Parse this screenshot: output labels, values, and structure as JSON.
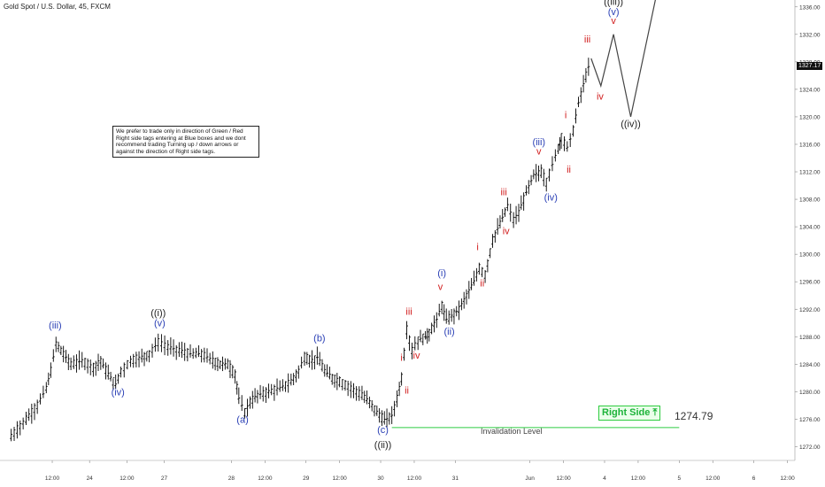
{
  "header": {
    "title": "Gold Spot / U.S. Dollar, 45, FXCM"
  },
  "note": {
    "text": "We prefer to trade only in direction of Green / Red Right side tags entering at Blue boxes and we dont recommend trading Turning up / down arrows or against the direction of Right side tags."
  },
  "right_side_tag": {
    "label": "Right Side",
    "arrow": "⤒"
  },
  "invalidation": {
    "label": "Invalidation Level",
    "value": "1274.79"
  },
  "last_price": "1327.17",
  "colors": {
    "bull": "#000000",
    "blue_label": "#2a3fb5",
    "red_label": "#d11d1d",
    "black_label": "#222222",
    "green": "#2ecc40",
    "grid": "#f0f0f0",
    "projection": "#444444"
  },
  "chart_data": {
    "type": "line",
    "title": "Gold Spot / U.S. Dollar, 45, FXCM",
    "ylim": [
      1270,
      1337
    ],
    "y_ticks": [
      "1272.00",
      "1276.00",
      "1280.00",
      "1284.00",
      "1288.00",
      "1292.00",
      "1296.00",
      "1300.00",
      "1304.00",
      "1308.00",
      "1312.00",
      "1316.00",
      "1320.00",
      "1324.00",
      "1328.00",
      "1332.00",
      "1336.00"
    ],
    "x_ticks": [
      {
        "label": "12:00",
        "t": 0.8
      },
      {
        "label": "24",
        "t": 1.3
      },
      {
        "label": "12:00",
        "t": 1.8
      },
      {
        "label": "27",
        "t": 2.3
      },
      {
        "label": "28",
        "t": 3.2
      },
      {
        "label": "12:00",
        "t": 3.65
      },
      {
        "label": "29",
        "t": 4.2
      },
      {
        "label": "12:00",
        "t": 4.65
      },
      {
        "label": "30",
        "t": 5.2
      },
      {
        "label": "12:00",
        "t": 5.65
      },
      {
        "label": "31",
        "t": 6.2
      },
      {
        "label": "Jun",
        "t": 7.2
      },
      {
        "label": "12:00",
        "t": 7.65
      },
      {
        "label": "4",
        "t": 8.2
      },
      {
        "label": "12:00",
        "t": 8.65
      },
      {
        "label": "5",
        "t": 9.2
      },
      {
        "label": "12:00",
        "t": 9.65
      },
      {
        "label": "6",
        "t": 10.2
      },
      {
        "label": "12:00",
        "t": 10.65
      }
    ],
    "price_path": [
      [
        0.25,
        1273.5
      ],
      [
        0.45,
        1276
      ],
      [
        0.6,
        1278
      ],
      [
        0.72,
        1280.5
      ],
      [
        0.78,
        1283
      ],
      [
        0.85,
        1287
      ],
      [
        0.95,
        1285.5
      ],
      [
        1.05,
        1284
      ],
      [
        1.2,
        1284.5
      ],
      [
        1.35,
        1283.5
      ],
      [
        1.45,
        1284.5
      ],
      [
        1.55,
        1282.5
      ],
      [
        1.65,
        1281
      ],
      [
        1.72,
        1283
      ],
      [
        1.85,
        1284.5
      ],
      [
        2.0,
        1285
      ],
      [
        2.1,
        1285.5
      ],
      [
        2.22,
        1287.2
      ],
      [
        2.35,
        1286.5
      ],
      [
        2.5,
        1286
      ],
      [
        2.65,
        1285.5
      ],
      [
        2.8,
        1285.5
      ],
      [
        2.95,
        1284.5
      ],
      [
        3.05,
        1284
      ],
      [
        3.15,
        1284
      ],
      [
        3.25,
        1282.5
      ],
      [
        3.3,
        1279
      ],
      [
        3.38,
        1277
      ],
      [
        3.45,
        1278.5
      ],
      [
        3.55,
        1279.5
      ],
      [
        3.7,
        1280
      ],
      [
        3.85,
        1280.5
      ],
      [
        4.0,
        1281.5
      ],
      [
        4.1,
        1283
      ],
      [
        4.18,
        1285
      ],
      [
        4.28,
        1284.5
      ],
      [
        4.35,
        1285
      ],
      [
        4.45,
        1283
      ],
      [
        4.55,
        1282
      ],
      [
        4.65,
        1281.5
      ],
      [
        4.8,
        1280.5
      ],
      [
        4.95,
        1279.5
      ],
      [
        5.05,
        1278.5
      ],
      [
        5.15,
        1277
      ],
      [
        5.25,
        1275.8
      ],
      [
        5.35,
        1276.5
      ],
      [
        5.42,
        1279
      ],
      [
        5.48,
        1282
      ],
      [
        5.55,
        1289
      ],
      [
        5.62,
        1286
      ],
      [
        5.7,
        1287.5
      ],
      [
        5.8,
        1288
      ],
      [
        5.85,
        1288.5
      ],
      [
        5.95,
        1290.5
      ],
      [
        6.02,
        1292.5
      ],
      [
        6.08,
        1290.5
      ],
      [
        6.15,
        1291
      ],
      [
        6.25,
        1292
      ],
      [
        6.35,
        1294
      ],
      [
        6.45,
        1296
      ],
      [
        6.52,
        1298
      ],
      [
        6.6,
        1297
      ],
      [
        6.7,
        1302
      ],
      [
        6.8,
        1304.5
      ],
      [
        6.9,
        1307
      ],
      [
        6.98,
        1305
      ],
      [
        7.05,
        1306
      ],
      [
        7.15,
        1309
      ],
      [
        7.25,
        1311.5
      ],
      [
        7.35,
        1312
      ],
      [
        7.42,
        1310.5
      ],
      [
        7.5,
        1313
      ],
      [
        7.58,
        1315.5
      ],
      [
        7.62,
        1317
      ],
      [
        7.7,
        1315.5
      ],
      [
        7.78,
        1318
      ],
      [
        7.85,
        1322
      ],
      [
        7.95,
        1326
      ],
      [
        8.02,
        1328.5
      ]
    ],
    "projection_path": [
      [
        8.02,
        1328.5
      ],
      [
        8.15,
        1324.5
      ],
      [
        8.32,
        1332
      ],
      [
        8.55,
        1320
      ],
      [
        8.9,
        1338
      ]
    ],
    "invalidation_level": 1274.79,
    "invalidation_range": [
      5.35,
      9.2
    ],
    "annotations": [
      {
        "text": "(iii)",
        "t": 0.84,
        "y": 1289.2,
        "color": "blue"
      },
      {
        "text": "(iv)",
        "t": 1.68,
        "y": 1279.5,
        "color": "blue"
      },
      {
        "text": "((i))",
        "t": 2.22,
        "y": 1291,
        "color": "black"
      },
      {
        "text": "(v)",
        "t": 2.24,
        "y": 1289.5,
        "color": "blue"
      },
      {
        "text": "(a)",
        "t": 3.35,
        "y": 1275.5,
        "color": "blue"
      },
      {
        "text": "(b)",
        "t": 4.38,
        "y": 1287.3,
        "color": "blue"
      },
      {
        "text": "(c)",
        "t": 5.23,
        "y": 1274,
        "color": "blue"
      },
      {
        "text": "((ii))",
        "t": 5.23,
        "y": 1271.8,
        "color": "black"
      },
      {
        "text": "i",
        "t": 5.48,
        "y": 1284.5,
        "color": "red"
      },
      {
        "text": "ii",
        "t": 5.55,
        "y": 1279.7,
        "color": "red"
      },
      {
        "text": "iii",
        "t": 5.58,
        "y": 1291.2,
        "color": "red"
      },
      {
        "text": "iv",
        "t": 5.68,
        "y": 1284.8,
        "color": "red"
      },
      {
        "text": "v",
        "t": 6.0,
        "y": 1294.8,
        "color": "red"
      },
      {
        "text": "(i)",
        "t": 6.02,
        "y": 1296.8,
        "color": "blue"
      },
      {
        "text": "(ii)",
        "t": 6.12,
        "y": 1288.3,
        "color": "blue"
      },
      {
        "text": "i",
        "t": 6.5,
        "y": 1300.6,
        "color": "red"
      },
      {
        "text": "ii",
        "t": 6.56,
        "y": 1295.3,
        "color": "red"
      },
      {
        "text": "iii",
        "t": 6.85,
        "y": 1308.6,
        "color": "red"
      },
      {
        "text": "iv",
        "t": 6.88,
        "y": 1302.9,
        "color": "red"
      },
      {
        "text": "v",
        "t": 7.32,
        "y": 1314.5,
        "color": "red"
      },
      {
        "text": "(iii)",
        "t": 7.32,
        "y": 1315.9,
        "color": "blue"
      },
      {
        "text": "(iv)",
        "t": 7.48,
        "y": 1307.8,
        "color": "blue"
      },
      {
        "text": "i",
        "t": 7.68,
        "y": 1319.8,
        "color": "red"
      },
      {
        "text": "ii",
        "t": 7.72,
        "y": 1311.9,
        "color": "red"
      },
      {
        "text": "iii",
        "t": 7.97,
        "y": 1330.8,
        "color": "red"
      },
      {
        "text": "iv",
        "t": 8.14,
        "y": 1322.5,
        "color": "red"
      },
      {
        "text": "v",
        "t": 8.32,
        "y": 1333.5,
        "color": "red"
      },
      {
        "text": "(v)",
        "t": 8.32,
        "y": 1334.8,
        "color": "blue"
      },
      {
        "text": "((iii))",
        "t": 8.32,
        "y": 1336.3,
        "color": "black"
      },
      {
        "text": "((iv))",
        "t": 8.55,
        "y": 1318.5,
        "color": "black"
      }
    ]
  }
}
